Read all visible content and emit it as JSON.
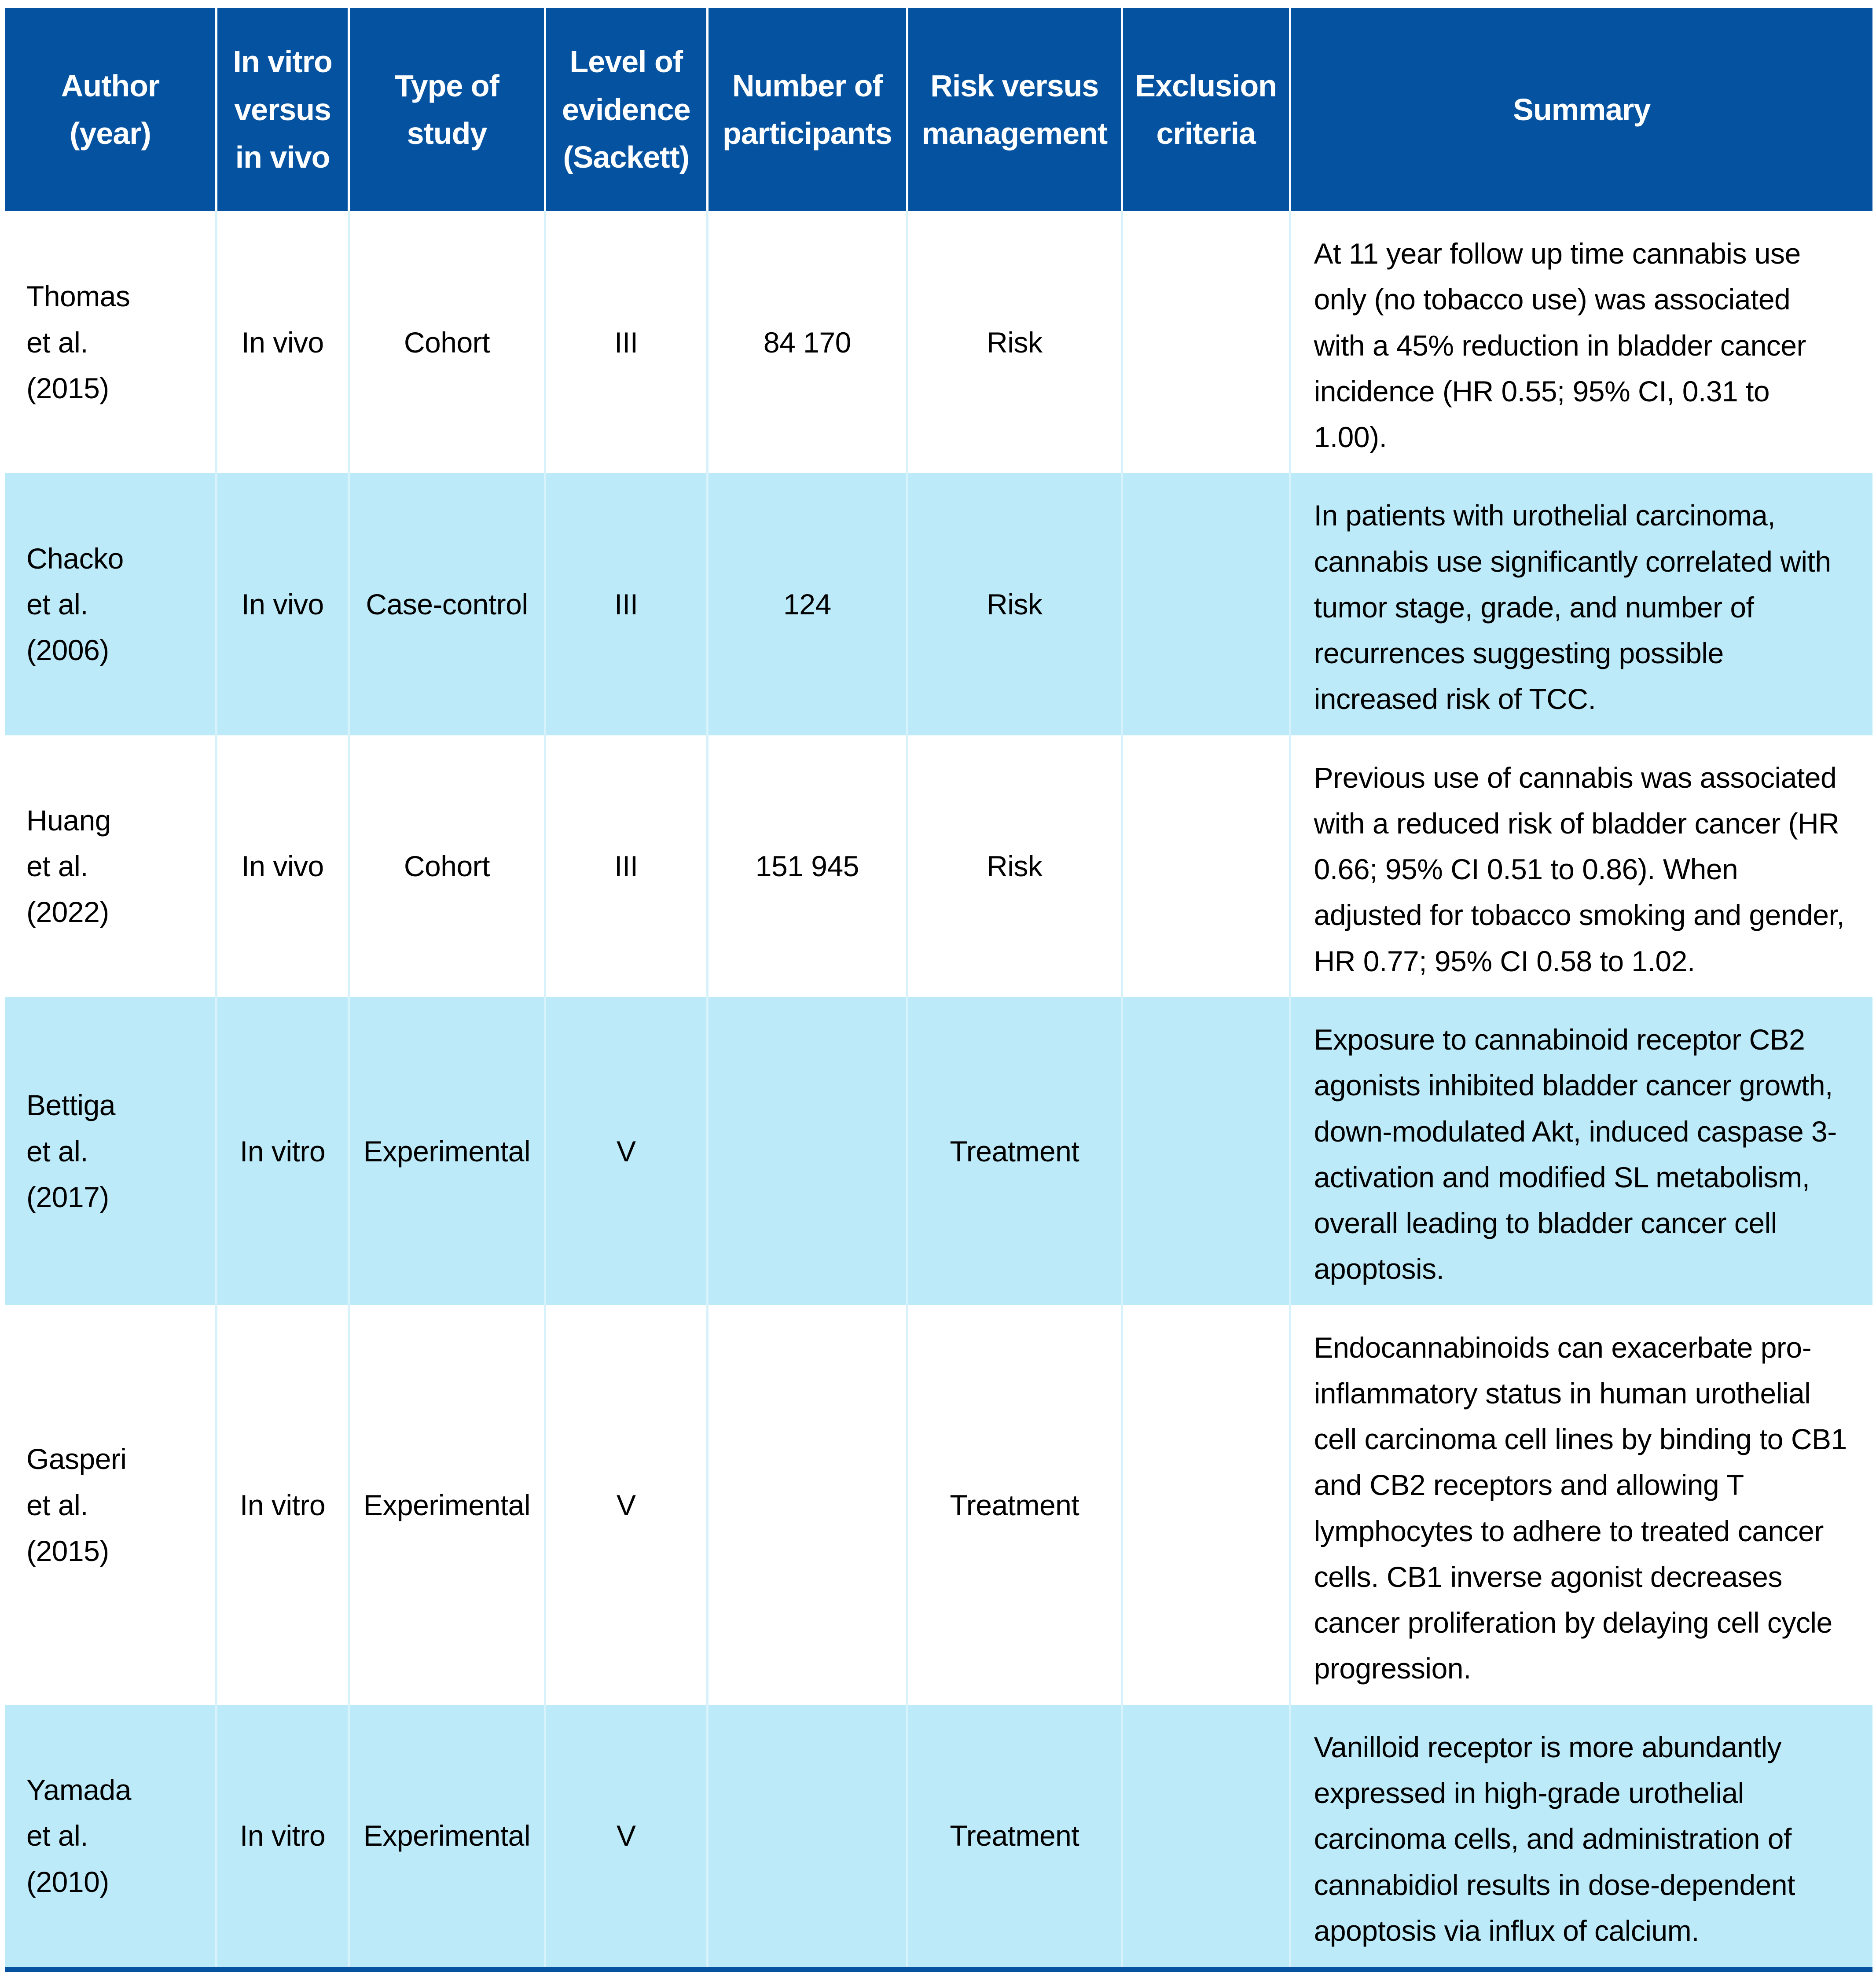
{
  "theme": {
    "header_bg": "#0553a0",
    "header_text": "#ffffff",
    "row_bg": "#ffffff",
    "row_alt_bg": "#bceaf9",
    "body_text": "#000000",
    "header_divider": "#ffffff",
    "body_divider": "#d8f2fb",
    "bottom_rule": "#0553a0"
  },
  "table": {
    "columns": [
      {
        "key": "author",
        "label": "Author\n(year)"
      },
      {
        "key": "vitro_vivo",
        "label": "In vitro\nversus\nin vivo"
      },
      {
        "key": "study_type",
        "label": "Type of\nstudy"
      },
      {
        "key": "evidence",
        "label": "Level of\nevidence\n(Sackett)"
      },
      {
        "key": "participants",
        "label": "Number of\nparticipants"
      },
      {
        "key": "risk_mgmt",
        "label": "Risk versus\nmanagement"
      },
      {
        "key": "exclusion",
        "label": "Exclusion\ncriteria"
      },
      {
        "key": "summary",
        "label": "Summary"
      }
    ],
    "rows": [
      {
        "author": "Thomas\net al.\n(2015)",
        "vitro_vivo": "In vivo",
        "study_type": "Cohort",
        "evidence": "III",
        "participants": "84 170",
        "risk_mgmt": "Risk",
        "exclusion": "",
        "summary": "At 11 year follow up time cannabis use only (no tobacco use) was associated with a 45% reduction in bladder cancer incidence (HR 0.55; 95% CI, 0.31 to 1.00)."
      },
      {
        "author": "Chacko\net al.\n(2006)",
        "vitro_vivo": "In vivo",
        "study_type": "Case-control",
        "evidence": "III",
        "participants": "124",
        "risk_mgmt": "Risk",
        "exclusion": "",
        "summary": "In patients with urothelial carcinoma, cannabis use significantly correlated with tumor stage, grade, and number of recurrences suggesting possible increased risk of TCC."
      },
      {
        "author": "Huang\net al.\n(2022)",
        "vitro_vivo": "In vivo",
        "study_type": "Cohort",
        "evidence": "III",
        "participants": "151 945",
        "risk_mgmt": "Risk",
        "exclusion": "",
        "summary": "Previous use of cannabis was associated with a reduced risk of bladder cancer (HR 0.66; 95% CI 0.51 to 0.86). When adjusted for tobacco smoking and gender, HR 0.77; 95% CI 0.58 to 1.02."
      },
      {
        "author": "Bettiga\net al.\n(2017)",
        "vitro_vivo": "In vitro",
        "study_type": "Experimental",
        "evidence": "V",
        "participants": "",
        "risk_mgmt": "Treatment",
        "exclusion": "",
        "summary": "Exposure to cannabinoid receptor CB2 agonists inhibited bladder cancer growth, down-modulated Akt, induced caspase 3-activation and modified SL metabolism, overall leading to bladder cancer cell apoptosis."
      },
      {
        "author": "Gasperi\net al.\n(2015)",
        "vitro_vivo": "In vitro",
        "study_type": "Experimental",
        "evidence": "V",
        "participants": "",
        "risk_mgmt": "Treatment",
        "exclusion": "",
        "summary": "Endocannabinoids can exacerbate pro-inflammatory status in human urothelial cell carcinoma cell lines by binding to CB1 and CB2 receptors and allowing T lymphocytes to adhere to treated cancer cells. CB1 inverse agonist decreases cancer proliferation by delaying cell cycle progression."
      },
      {
        "author": "Yamada\net al.\n(2010)",
        "vitro_vivo": "In vitro",
        "study_type": "Experimental",
        "evidence": "V",
        "participants": "",
        "risk_mgmt": "Treatment",
        "exclusion": "",
        "summary": "Vanilloid receptor is more abundantly expressed in high-grade urothelial carcinoma cells, and administration of cannabidiol results in dose-dependent apoptosis via influx of calcium."
      }
    ]
  }
}
